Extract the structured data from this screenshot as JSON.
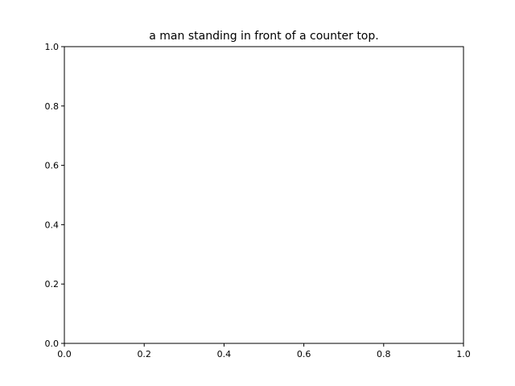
{
  "chart_data": {
    "type": "line",
    "title": "a man standing in front of a counter top.",
    "xlabel": "",
    "ylabel": "",
    "xlim": [
      0.0,
      1.0
    ],
    "ylim": [
      0.0,
      1.0
    ],
    "xticks": [
      0.0,
      0.2,
      0.4,
      0.6,
      0.8,
      1.0
    ],
    "yticks": [
      0.0,
      0.2,
      0.4,
      0.6,
      0.8,
      1.0
    ],
    "xtick_labels": [
      "0.0",
      "0.2",
      "0.4",
      "0.6",
      "0.8",
      "1.0"
    ],
    "ytick_labels": [
      "0.0",
      "0.2",
      "0.4",
      "0.6",
      "0.8",
      "1.0"
    ],
    "series": [],
    "grid": false
  }
}
